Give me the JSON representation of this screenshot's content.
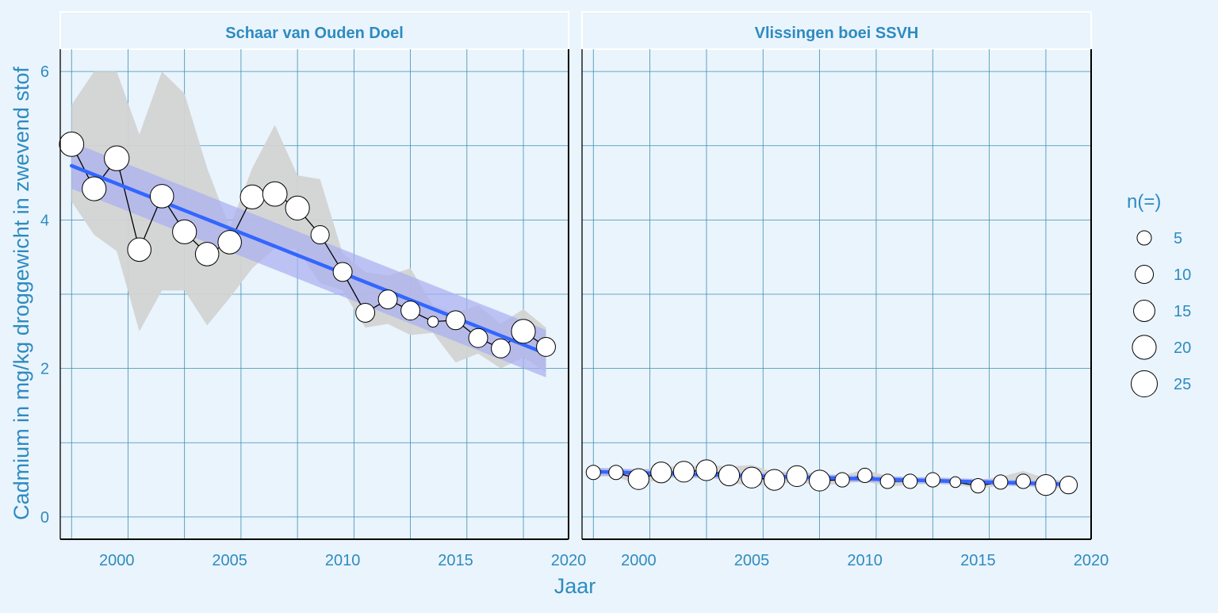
{
  "chart_data": {
    "type": "scatter",
    "xlabel": "Jaar",
    "ylabel": "Cadmium in mg/kg droggewicht in zwevend stof",
    "xlim": [
      1997.5,
      2020
    ],
    "ylim": [
      -0.3,
      6.3
    ],
    "x_ticks": [
      2000,
      2005,
      2010,
      2015,
      2020
    ],
    "y_ticks": [
      0,
      2,
      4,
      6
    ],
    "grid": true,
    "legend": {
      "title": "n(=)",
      "position": "right",
      "sizes": [
        5,
        10,
        15,
        20,
        25
      ],
      "labels": [
        "5",
        "10",
        "15",
        "20",
        "25"
      ]
    },
    "colors": {
      "background": "#eaf4fd",
      "grid": "#3d8fb0",
      "text": "#2e8bc0",
      "trend_line": "#3366ff",
      "trend_band": "#a8aef0",
      "range_band": "#d3d3d3",
      "point_fill": "#ffffff",
      "point_stroke": "#000000"
    },
    "panels": [
      {
        "title": "Schaar van Ouden Doel",
        "years": [
          1998,
          1999,
          2000,
          2001,
          2002,
          2003,
          2004,
          2005,
          2006,
          2007,
          2008,
          2009,
          2010,
          2011,
          2012,
          2013,
          2014,
          2015,
          2016,
          2017,
          2018,
          2019
        ],
        "values": [
          5.02,
          4.42,
          4.83,
          3.6,
          4.32,
          3.84,
          3.54,
          3.7,
          4.31,
          4.35,
          4.16,
          3.8,
          3.3,
          2.75,
          2.93,
          2.78,
          2.63,
          2.65,
          2.41,
          2.27,
          2.5,
          2.29
        ],
        "n": [
          21,
          20,
          22,
          19,
          19,
          20,
          19,
          19,
          20,
          21,
          20,
          10,
          11,
          11,
          11,
          11,
          2,
          11,
          11,
          11,
          20,
          11
        ],
        "range_upper": [
          5.55,
          6.0,
          6.0,
          5.15,
          6.0,
          5.7,
          4.7,
          3.9,
          4.7,
          5.28,
          4.6,
          4.55,
          3.55,
          3.3,
          3.25,
          3.35,
          2.85,
          2.75,
          2.85,
          2.6,
          2.8,
          2.55
        ],
        "range_lower": [
          4.25,
          3.8,
          3.58,
          2.5,
          3.05,
          3.05,
          2.58,
          2.95,
          3.35,
          3.62,
          3.6,
          3.15,
          3.05,
          2.55,
          2.6,
          2.45,
          2.48,
          2.08,
          2.2,
          2.0,
          2.15,
          1.95
        ],
        "trend": {
          "start": [
            1998,
            4.73
          ],
          "end": [
            2019,
            2.2
          ]
        },
        "trend_band": {
          "upper": [
            5.05,
            2.52
          ],
          "lower": [
            4.42,
            1.88
          ]
        }
      },
      {
        "title": "Vlissingen boei SSVH",
        "years": [
          1998,
          1999,
          2000,
          2001,
          2002,
          2003,
          2004,
          2005,
          2006,
          2007,
          2008,
          2009,
          2010,
          2011,
          2012,
          2013,
          2014,
          2015,
          2016,
          2017,
          2018,
          2019
        ],
        "values": [
          0.6,
          0.6,
          0.51,
          0.6,
          0.61,
          0.63,
          0.56,
          0.53,
          0.5,
          0.55,
          0.49,
          0.5,
          0.56,
          0.48,
          0.48,
          0.5,
          0.47,
          0.42,
          0.47,
          0.48,
          0.43,
          0.43
        ],
        "n": [
          5,
          5,
          14,
          14,
          14,
          14,
          14,
          14,
          14,
          14,
          14,
          5,
          5,
          5,
          5,
          5,
          2,
          5,
          5,
          5,
          14,
          9
        ],
        "range_upper": [
          0.66,
          0.66,
          0.63,
          0.68,
          0.68,
          0.7,
          0.68,
          0.7,
          0.6,
          0.62,
          0.58,
          0.56,
          0.64,
          0.55,
          0.53,
          0.54,
          0.52,
          0.5,
          0.54,
          0.62,
          0.52,
          0.48
        ],
        "range_lower": [
          0.54,
          0.55,
          0.42,
          0.52,
          0.54,
          0.56,
          0.46,
          0.42,
          0.43,
          0.48,
          0.42,
          0.45,
          0.48,
          0.41,
          0.43,
          0.45,
          0.44,
          0.38,
          0.42,
          0.42,
          0.38,
          0.39
        ],
        "trend": {
          "start": [
            1998,
            0.61
          ],
          "end": [
            2019,
            0.44
          ]
        },
        "trend_band": {
          "upper": [
            0.66,
            0.48
          ],
          "lower": [
            0.56,
            0.4
          ]
        }
      }
    ]
  }
}
